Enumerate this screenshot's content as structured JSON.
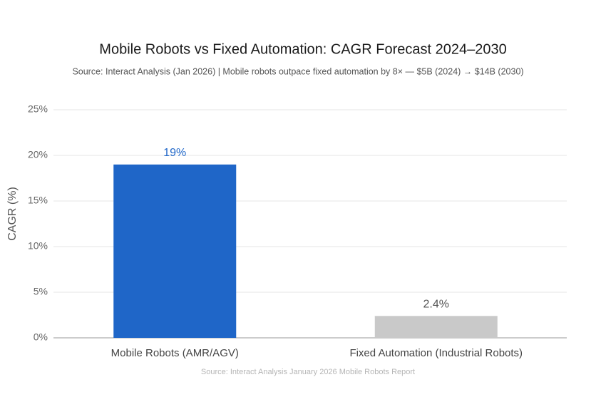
{
  "chart_data": {
    "type": "bar",
    "title": "Mobile Robots vs Fixed Automation: CAGR Forecast 2024–2030",
    "subtitle": "Source: Interact Analysis (Jan 2026) | Mobile robots outpace fixed automation by 8× — $5B (2024) → $14B (2030)",
    "y_label": "CAGR (%)",
    "footnote": "Source: Interact Analysis January 2026 Mobile Robots Report",
    "categories": [
      "Mobile Robots (AMR/AGV)",
      "Fixed Automation (Industrial Robots)"
    ],
    "values": [
      19,
      2.4
    ],
    "value_labels": [
      "19%",
      "2.4%"
    ],
    "colors": [
      "#1f66c8",
      "#c9c9c9"
    ],
    "label_colors": [
      "#1f66c8",
      "#555555"
    ],
    "ylim": [
      0,
      25
    ],
    "yticks": [
      {
        "value": 0,
        "label": "0%"
      },
      {
        "value": 5,
        "label": "5%"
      },
      {
        "value": 10,
        "label": "10%"
      },
      {
        "value": 15,
        "label": "15%"
      },
      {
        "value": 20,
        "label": "20%"
      },
      {
        "value": 25,
        "label": "25%"
      }
    ],
    "grid": true
  }
}
